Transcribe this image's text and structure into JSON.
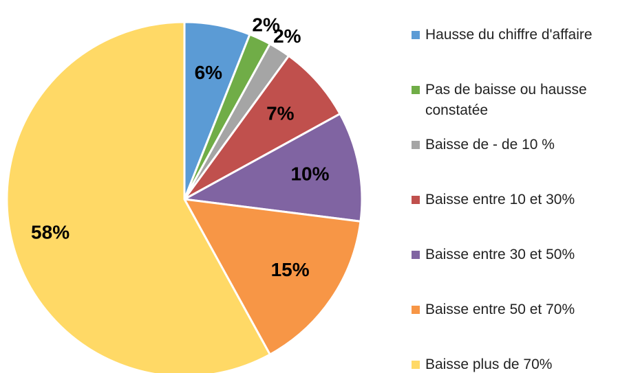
{
  "chart_data": {
    "type": "pie",
    "categories": [
      "Hausse du chiffre d'affaire",
      "Pas de baisse ou hausse constatée",
      "Baisse de - de 10 %",
      "Baisse entre 10 et 30%",
      "Baisse entre 30 et 50%",
      "Baisse entre 50 et 70%",
      "Baisse plus de 70%"
    ],
    "values": [
      6,
      2,
      2,
      7,
      10,
      15,
      58
    ],
    "value_labels": [
      "6%",
      "2%",
      "2%",
      "7%",
      "10%",
      "15%",
      "58%"
    ],
    "colors": [
      "#5b9bd5",
      "#70ad47",
      "#a5a5a5",
      "#c0504d",
      "#8064a2",
      "#f79646",
      "#ffd966"
    ],
    "legend": "right"
  }
}
